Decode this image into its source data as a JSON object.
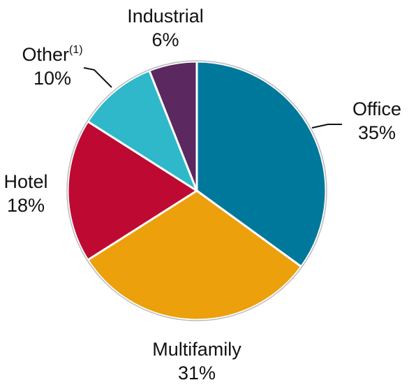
{
  "chart_data": {
    "type": "pie",
    "categories": [
      "Office",
      "Multifamily",
      "Hotel",
      "Other",
      "Industrial"
    ],
    "category_superscripts": [
      null,
      null,
      null,
      "(1)",
      null
    ],
    "values": [
      35,
      31,
      18,
      10,
      6
    ],
    "value_labels": [
      "35%",
      "31%",
      "18%",
      "10%",
      "6%"
    ],
    "colors": [
      "#00789c",
      "#eba00c",
      "#be0a32",
      "#2fb8c9",
      "#5b285f"
    ],
    "start_angle": 0,
    "direction": "clockwise"
  }
}
